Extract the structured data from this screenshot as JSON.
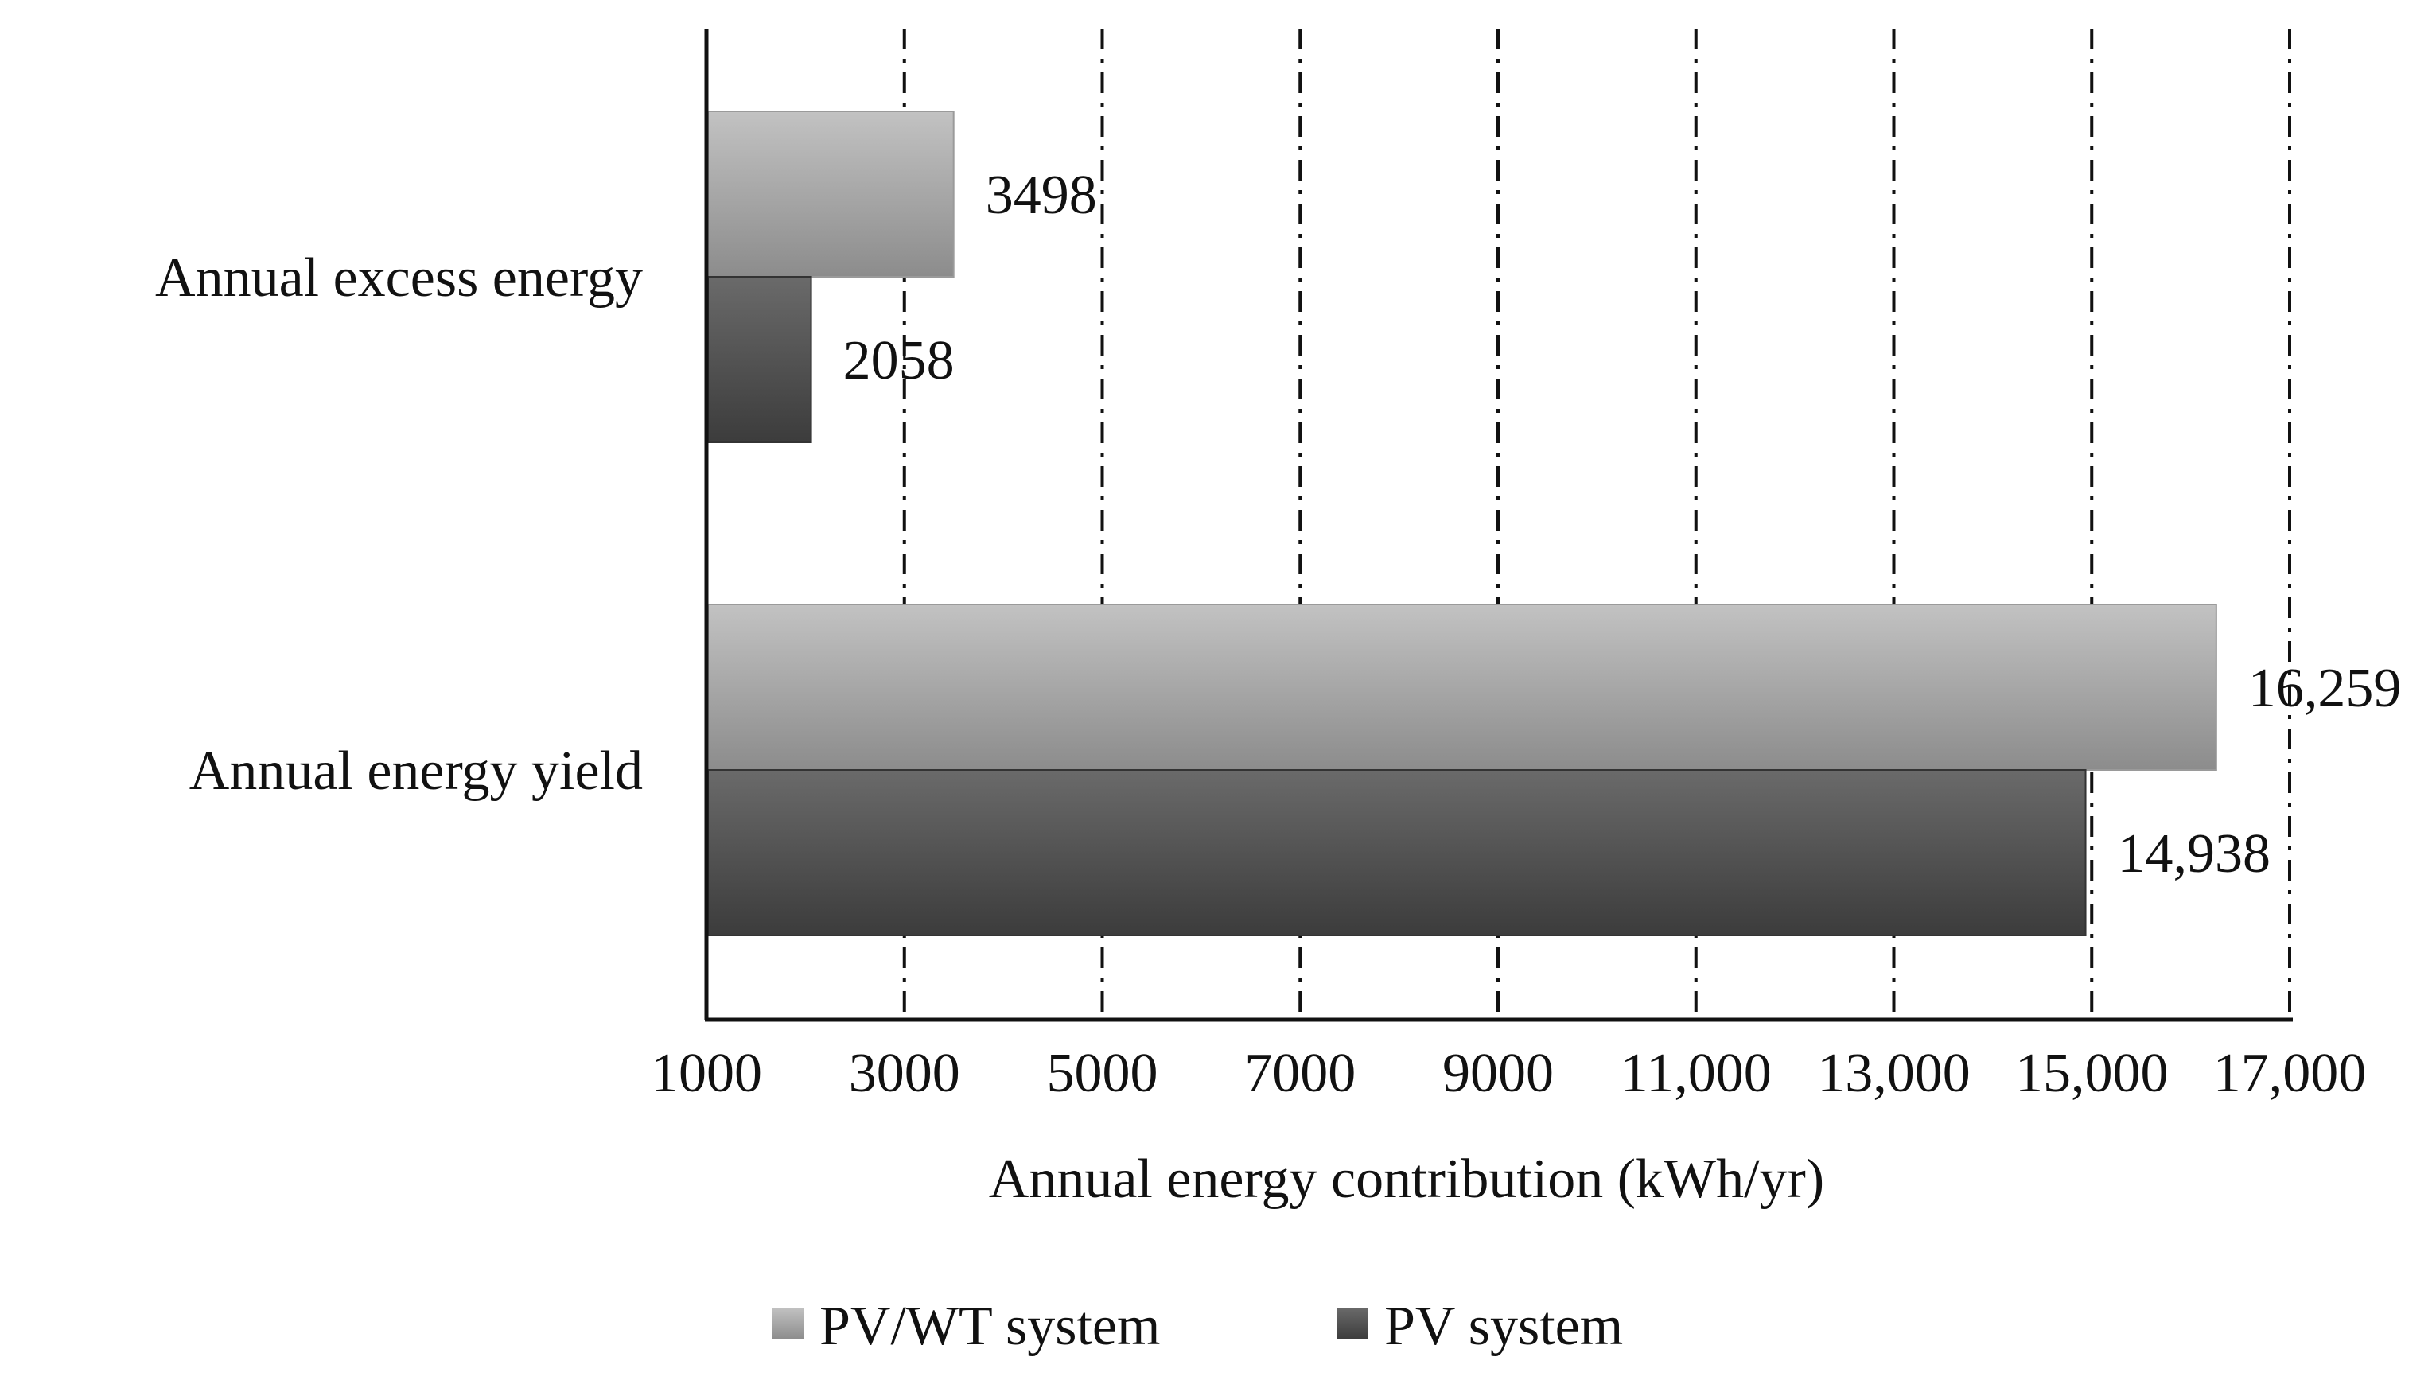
{
  "chart_data": {
    "type": "bar",
    "orientation": "horizontal",
    "title": "",
    "xlabel": "Annual energy contribution (kWh/yr)",
    "ylabel": "",
    "xlim": [
      1000,
      17000
    ],
    "x_ticks": [
      1000,
      3000,
      5000,
      7000,
      9000,
      11000,
      13000,
      15000,
      17000
    ],
    "x_tick_labels": [
      "1000",
      "3000",
      "5000",
      "7000",
      "9000",
      "11,000",
      "13,000",
      "15,000",
      "17,000"
    ],
    "categories": [
      "Annual excess energy",
      "Annual energy yield"
    ],
    "series": [
      {
        "name": "PV/WT system",
        "values": [
          3498,
          16259
        ],
        "labels": [
          "3498",
          "16,259"
        ],
        "color_light": "#b4b4b4",
        "color_dark": "#8a8a8a"
      },
      {
        "name": "PV system",
        "values": [
          2058,
          14938
        ],
        "labels": [
          "2058",
          "14,938"
        ],
        "color_light": "#626262",
        "color_dark": "#3e3e3e"
      }
    ],
    "grid": true,
    "grid_style": "dash-dot vertical",
    "legend_position": "bottom"
  }
}
